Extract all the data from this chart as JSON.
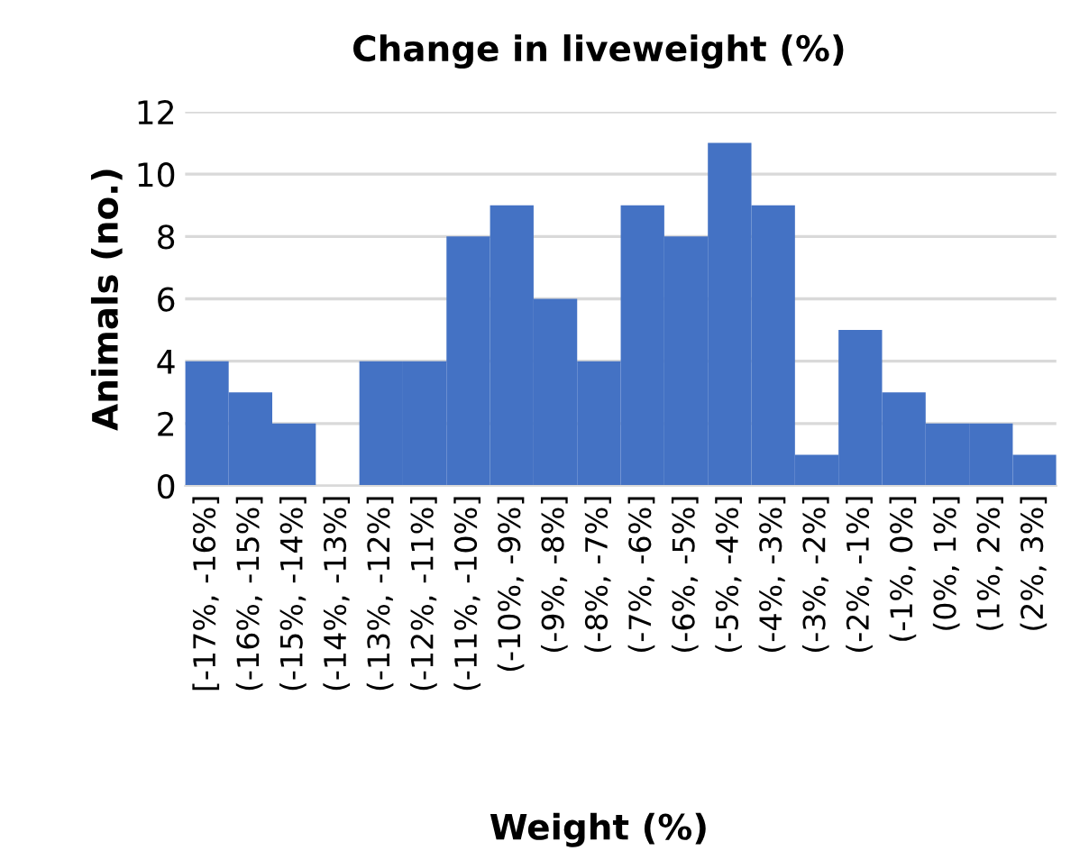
{
  "chart_data": {
    "type": "bar",
    "title": "Change in liveweight (%)",
    "xlabel": "Weight (%)",
    "ylabel": "Animals (no.)",
    "categories": [
      "[-17%, -16%]",
      "(-16%, -15%]",
      "(-15%, -14%]",
      "(-14%, -13%]",
      "(-13%, -12%]",
      "(-12%, -11%]",
      "(-11%, -10%]",
      "(-10%, -9%]",
      "(-9%, -8%]",
      "(-8%, -7%]",
      "(-7%, -6%]",
      "(-6%, -5%]",
      "(-5%, -4%]",
      "(-4%, -3%]",
      "(-3%, -2%]",
      "(-2%, -1%]",
      "(-1%, 0%]",
      "(0%, 1%]",
      "(1%, 2%]",
      "(2%, 3%]"
    ],
    "values": [
      4,
      3,
      2,
      0,
      4,
      4,
      8,
      9,
      6,
      4,
      9,
      8,
      11,
      9,
      1,
      5,
      3,
      2,
      2,
      1
    ],
    "color": "#4472c4",
    "ylim": [
      0,
      12
    ],
    "yticks": [
      0,
      2,
      4,
      6,
      8,
      10,
      12
    ],
    "grid": "y",
    "legend": false
  }
}
